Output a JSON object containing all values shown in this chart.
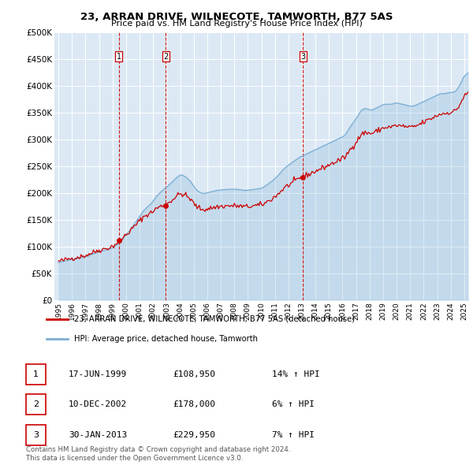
{
  "title": "23, ARRAN DRIVE, WILNECOTE, TAMWORTH, B77 5AS",
  "subtitle": "Price paid vs. HM Land Registry's House Price Index (HPI)",
  "background_color": "#ffffff",
  "plot_bg_color": "#dce9f5",
  "legend_label_red": "23, ARRAN DRIVE, WILNECOTE, TAMWORTH, B77 5AS (detached house)",
  "legend_label_blue": "HPI: Average price, detached house, Tamworth",
  "footnote": "Contains HM Land Registry data © Crown copyright and database right 2024.\nThis data is licensed under the Open Government Licence v3.0.",
  "sales": [
    {
      "num": 1,
      "date": "17-JUN-1999",
      "price": 108950,
      "hpi_pct": "14%",
      "x_year": 1999.46
    },
    {
      "num": 2,
      "date": "10-DEC-2002",
      "price": 178000,
      "hpi_pct": "6%",
      "x_year": 2002.94
    },
    {
      "num": 3,
      "date": "30-JAN-2013",
      "price": 229950,
      "hpi_pct": "7%",
      "x_year": 2013.08
    }
  ],
  "ylim": [
    0,
    500000
  ],
  "yticks": [
    0,
    50000,
    100000,
    150000,
    200000,
    250000,
    300000,
    350000,
    400000,
    450000,
    500000
  ],
  "ytick_labels": [
    "£0",
    "£50K",
    "£100K",
    "£150K",
    "£200K",
    "£250K",
    "£300K",
    "£350K",
    "£400K",
    "£450K",
    "£500K"
  ],
  "xlim": [
    1994.7,
    2025.3
  ],
  "xticks": [
    1995,
    1996,
    1997,
    1998,
    1999,
    2000,
    2001,
    2002,
    2003,
    2004,
    2005,
    2006,
    2007,
    2008,
    2009,
    2010,
    2011,
    2012,
    2013,
    2014,
    2015,
    2016,
    2017,
    2018,
    2019,
    2020,
    2021,
    2022,
    2023,
    2024,
    2025
  ],
  "red_color": "#cc0000",
  "blue_color": "#7bafd4",
  "sale_dot_color": "#cc0000",
  "dashed_color": "#cc0000",
  "hpi_y_monthly": [
    70000,
    70500,
    71000,
    71500,
    72000,
    72500,
    73000,
    73500,
    74000,
    74500,
    75000,
    75500,
    76000,
    76300,
    76700,
    77000,
    77400,
    77800,
    78200,
    78600,
    79000,
    79500,
    80000,
    80500,
    81000,
    81800,
    82600,
    83400,
    84200,
    85000,
    85800,
    86600,
    87400,
    88200,
    89000,
    89800,
    90500,
    91000,
    91500,
    92000,
    92500,
    93000,
    93500,
    94000,
    94700,
    95400,
    96100,
    96800,
    97500,
    99000,
    100500,
    102000,
    103500,
    105000,
    107000,
    109000,
    111500,
    114000,
    117000,
    120000,
    122000,
    124500,
    127000,
    129500,
    132000,
    135000,
    138000,
    141000,
    144000,
    147000,
    150000,
    153000,
    156000,
    159000,
    162000,
    165000,
    168000,
    170000,
    172000,
    174000,
    176000,
    178000,
    180000,
    182000,
    185000,
    188000,
    191000,
    194000,
    196000,
    198000,
    200000,
    202000,
    204000,
    206000,
    208000,
    209500,
    211000,
    213000,
    215000,
    217000,
    219000,
    221000,
    223000,
    225000,
    227000,
    229000,
    231000,
    232000,
    233000,
    234000,
    233000,
    232000,
    231000,
    230000,
    228000,
    226000,
    224000,
    222000,
    219000,
    216000,
    213000,
    210000,
    207000,
    205000,
    203000,
    202000,
    201000,
    200000,
    199500,
    199000,
    199500,
    200000,
    200500,
    201000,
    201500,
    202000,
    202500,
    203000,
    203500,
    204000,
    204500,
    205000,
    205300,
    205500,
    205700,
    205900,
    206100,
    206300,
    206500,
    206700,
    206800,
    206900,
    207000,
    207000,
    207000,
    207000,
    207000,
    207000,
    207000,
    206700,
    206400,
    206100,
    205800,
    205500,
    205200,
    205000,
    205000,
    205000,
    205200,
    205500,
    205800,
    206100,
    206400,
    206700,
    207000,
    207300,
    207600,
    207900,
    208200,
    208500,
    209000,
    210000,
    211000,
    212500,
    214000,
    215500,
    217000,
    218500,
    220000,
    221500,
    223000,
    225000,
    227000,
    229000,
    231000,
    233000,
    235500,
    238000,
    240500,
    243000,
    245000,
    247000,
    249000,
    250500,
    252000,
    253500,
    255000,
    256500,
    258000,
    259500,
    261000,
    262500,
    264000,
    265500,
    267000,
    268000,
    269000,
    270000,
    271000,
    272000,
    273000,
    274000,
    275000,
    276000,
    277000,
    278000,
    279000,
    280000,
    281000,
    282000,
    283000,
    284000,
    285000,
    286000,
    287000,
    288000,
    289000,
    290000,
    291000,
    292000,
    293000,
    294000,
    295000,
    296000,
    297000,
    298000,
    299000,
    300000,
    301000,
    302000,
    303000,
    304000,
    305000,
    306500,
    308000,
    311000,
    314000,
    317000,
    320500,
    324000,
    327000,
    330000,
    333000,
    336000,
    339000,
    342000,
    345500,
    349000,
    352000,
    355000,
    356000,
    357000,
    358000,
    357500,
    357000,
    356500,
    356000,
    355500,
    355000,
    356000,
    357000,
    358000,
    359000,
    360000,
    361000,
    362000,
    363000,
    364000,
    365000,
    365500,
    366000,
    366000,
    366000,
    366000,
    366000,
    366000,
    366500,
    367000,
    367500,
    368000,
    368500,
    368000,
    367500,
    367000,
    366500,
    366000,
    365500,
    365000,
    364500,
    364000,
    363500,
    363000,
    362500,
    362000,
    362500,
    363000,
    363500,
    364000,
    365000,
    366000,
    367000,
    368000,
    369000,
    370000,
    371000,
    372000,
    373000,
    374000,
    375000,
    376000,
    377000,
    378000,
    379000,
    380000,
    381000,
    382000,
    383000,
    384000,
    385000,
    385500,
    386000,
    386000,
    386000,
    386000,
    386500,
    387000,
    387500,
    388000,
    388000,
    388000,
    388500,
    389000,
    390000,
    392000,
    395000,
    398000,
    402000,
    406000,
    410000,
    415000,
    418000,
    420000,
    422000,
    424000,
    426000,
    428000,
    430000,
    432000
  ]
}
